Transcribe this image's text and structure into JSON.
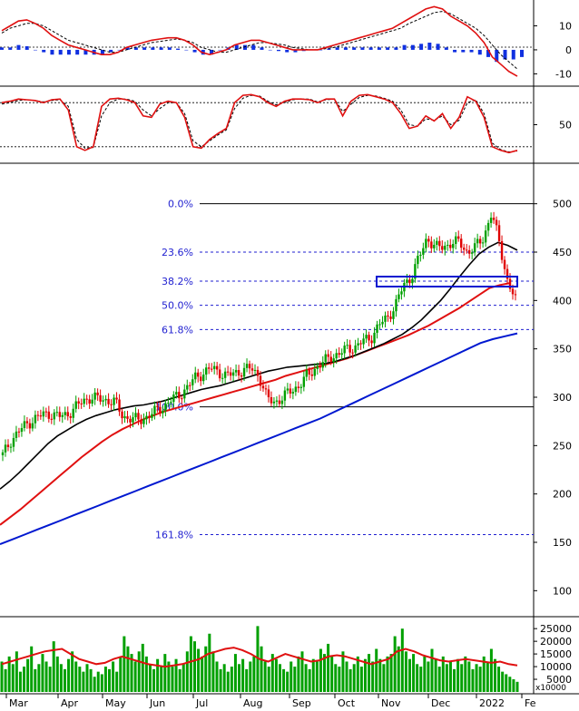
{
  "colors": {
    "up_candle": "#00a000",
    "down_candle": "#e00000",
    "ma_black": "#000000",
    "ma_red": "#e01010",
    "ma_blue": "#0018d0",
    "fib_text": "#1f1fd0",
    "volume": "#00a000",
    "macd_hist": "#1030e0"
  },
  "chart_data": [
    {
      "type": "line",
      "panel": "macd",
      "yticks": [
        10,
        0,
        -10
      ],
      "ylim": [
        -14,
        20
      ],
      "series": [
        {
          "role": "macd",
          "values": [
            8,
            10,
            12,
            12.5,
            11,
            9,
            6,
            4,
            2,
            1,
            0,
            -1,
            -2,
            -2,
            -1,
            1,
            2,
            3,
            4,
            4.5,
            5,
            5,
            4,
            2,
            -1,
            -2,
            -1,
            0,
            2,
            3,
            4,
            4,
            3,
            2,
            1,
            0,
            0,
            0,
            0,
            1,
            2,
            3,
            4,
            5,
            6,
            7,
            8,
            9,
            11,
            13,
            15,
            17,
            18,
            17,
            14,
            12,
            10,
            7,
            3,
            -3,
            -6,
            -9,
            -11
          ]
        },
        {
          "role": "signal",
          "values": [
            7,
            9,
            10,
            11,
            11,
            10,
            8,
            6,
            4,
            3,
            2,
            1,
            0,
            -1,
            -1,
            0,
            1,
            2,
            3,
            3.5,
            4,
            4.5,
            4,
            3,
            1,
            0,
            -1,
            -1,
            0,
            1,
            2,
            3,
            3,
            2.5,
            2,
            1,
            0.5,
            0,
            0,
            0.5,
            1,
            2,
            3,
            4,
            5,
            6,
            7,
            8,
            9,
            11,
            12.5,
            14,
            15.5,
            16,
            15,
            13,
            11,
            9,
            6,
            2,
            -2,
            -5,
            -8
          ]
        }
      ],
      "histogram": [
        1,
        1,
        2,
        1.5,
        0,
        -1,
        -2,
        -2,
        -2,
        -2,
        -2,
        -2,
        -2,
        -1,
        0,
        1,
        1,
        1,
        1,
        1,
        1,
        0.5,
        0,
        -1,
        -2,
        -2,
        0,
        1,
        2,
        2,
        2,
        1,
        0,
        -0.5,
        -1,
        -1,
        -0.5,
        0,
        0,
        0.5,
        1,
        1,
        1,
        1,
        1,
        1,
        1,
        1,
        2,
        2,
        2.5,
        3,
        2.5,
        1,
        -1,
        -1,
        -1,
        -2,
        -3,
        -5,
        -4,
        -4,
        -3
      ]
    },
    {
      "type": "line",
      "panel": "stochastic",
      "yticks": [
        50
      ],
      "ylim": [
        0,
        100
      ],
      "reference_lines": [
        80,
        20
      ],
      "series": [
        {
          "role": "k",
          "values": [
            80,
            82,
            85,
            84,
            83,
            80,
            84,
            85,
            70,
            20,
            15,
            20,
            75,
            85,
            86,
            84,
            80,
            62,
            60,
            78,
            82,
            80,
            60,
            20,
            18,
            30,
            38,
            45,
            80,
            90,
            91,
            88,
            80,
            75,
            82,
            85,
            85,
            84,
            80,
            85,
            85,
            62,
            82,
            90,
            91,
            88,
            85,
            80,
            65,
            45,
            48,
            62,
            55,
            65,
            45,
            60,
            88,
            82,
            60,
            20,
            15,
            12,
            15
          ]
        },
        {
          "role": "d",
          "values": [
            78,
            80,
            83,
            84,
            83,
            81,
            83,
            84,
            75,
            30,
            18,
            19,
            62,
            80,
            85,
            85,
            82,
            70,
            62,
            72,
            80,
            80,
            65,
            28,
            20,
            28,
            36,
            43,
            72,
            86,
            90,
            89,
            82,
            77,
            80,
            84,
            85,
            85,
            81,
            84,
            85,
            68,
            78,
            87,
            90,
            89,
            86,
            82,
            70,
            50,
            48,
            58,
            56,
            62,
            50,
            56,
            80,
            84,
            65,
            25,
            16,
            13,
            14
          ]
        }
      ]
    },
    {
      "type": "candlestick",
      "panel": "price",
      "yticks": [
        500,
        450,
        400,
        350,
        300,
        250,
        200,
        150,
        100
      ],
      "ylim": [
        75,
        540
      ],
      "fibonacci_levels": [
        {
          "label": "0.0%",
          "value": 500
        },
        {
          "label": "23.6%",
          "value": 450
        },
        {
          "label": "38.2%",
          "value": 420
        },
        {
          "label": "50.0%",
          "value": 395
        },
        {
          "label": "61.8%",
          "value": 370
        },
        {
          "label": "100.0%",
          "value": 290
        },
        {
          "label": "161.8%",
          "value": 158
        }
      ],
      "close": [
        240,
        255,
        265,
        272,
        278,
        282,
        283,
        280,
        282,
        289,
        296,
        300,
        298,
        297,
        295,
        280,
        278,
        276,
        280,
        285,
        290,
        297,
        302,
        310,
        320,
        325,
        330,
        326,
        322,
        325,
        328,
        330,
        322,
        298,
        295,
        300,
        307,
        312,
        322,
        330,
        336,
        342,
        345,
        350,
        352,
        358,
        362,
        375,
        382,
        395,
        415,
        425,
        445,
        465,
        455,
        455,
        460,
        460,
        450,
        455,
        465,
        490,
        460,
        420,
        400
      ],
      "ma_black": [
        205,
        213,
        222,
        232,
        242,
        252,
        260,
        266,
        272,
        277,
        281,
        284,
        287,
        289,
        291,
        292,
        294,
        296,
        299,
        302,
        305,
        308,
        310,
        312,
        315,
        318,
        321,
        324,
        327,
        329,
        331,
        332,
        333,
        334,
        335,
        337,
        340,
        343,
        347,
        351,
        355,
        360,
        365,
        372,
        380,
        390,
        400,
        412,
        425,
        437,
        448,
        455,
        460,
        457,
        452
      ],
      "ma_red": [
        168,
        176,
        184,
        193,
        202,
        211,
        220,
        229,
        238,
        246,
        254,
        261,
        267,
        272,
        277,
        281,
        285,
        288,
        291,
        294,
        297,
        300,
        303,
        306,
        309,
        312,
        315,
        318,
        322,
        325,
        328,
        331,
        334,
        337,
        340,
        344,
        348,
        352,
        356,
        360,
        364,
        369,
        374,
        380,
        386,
        392,
        399,
        406,
        413,
        416,
        418
      ],
      "ma_blue": [
        148,
        153,
        158,
        163,
        168,
        173,
        178,
        183,
        188,
        193,
        198,
        203,
        208,
        213,
        218,
        223,
        228,
        233,
        238,
        243,
        248,
        253,
        258,
        263,
        268,
        273,
        278,
        284,
        290,
        296,
        302,
        308,
        314,
        320,
        326,
        332,
        338,
        344,
        350,
        356,
        360,
        363,
        366
      ]
    },
    {
      "type": "bar",
      "panel": "volume",
      "yticks": [
        25000,
        20000,
        15000,
        10000,
        5000
      ],
      "yunit": "x10000",
      "ylim": [
        0,
        29000
      ],
      "values": [
        12000,
        9000,
        14000,
        11000,
        16000,
        8000,
        10000,
        13000,
        18000,
        9000,
        11000,
        15000,
        12000,
        10000,
        20000,
        14000,
        11000,
        9000,
        13000,
        16000,
        12000,
        10000,
        8000,
        11000,
        9000,
        6000,
        8000,
        7000,
        10000,
        9000,
        12000,
        8000,
        14000,
        22000,
        18000,
        15000,
        12000,
        16000,
        19000,
        14000,
        11000,
        9000,
        13000,
        10000,
        15000,
        12000,
        10000,
        13000,
        9000,
        11000,
        16000,
        22000,
        20000,
        17000,
        14000,
        18000,
        23000,
        16000,
        12000,
        9000,
        11000,
        8000,
        10000,
        15000,
        11000,
        13000,
        9000,
        12000,
        14000,
        26000,
        18000,
        12000,
        10000,
        15000,
        13000,
        11000,
        9000,
        8000,
        12000,
        10000,
        14000,
        16000,
        11000,
        9000,
        13000,
        12000,
        17000,
        15000,
        19000,
        14000,
        11000,
        10000,
        16000,
        12000,
        9000,
        11000,
        14000,
        10000,
        13000,
        15000,
        12000,
        17000,
        13000,
        11000,
        14000,
        15000,
        22000,
        18000,
        25000,
        16000,
        13000,
        15000,
        11000,
        10000,
        14000,
        12000,
        17000,
        13000,
        10000,
        14000,
        11000,
        12000,
        9000,
        13000,
        11000,
        14000,
        12000,
        9000,
        11000,
        10000,
        14000,
        12000,
        17000,
        13000,
        10000,
        8000,
        7000,
        6000,
        5000,
        4000
      ],
      "ma_values": [
        11000,
        12000,
        13000,
        14000,
        15000,
        16000,
        16500,
        17000,
        15000,
        13000,
        12000,
        11000,
        11500,
        13000,
        14000,
        13000,
        12000,
        11000,
        10500,
        10000,
        10500,
        11000,
        12000,
        13000,
        15000,
        16000,
        17000,
        17500,
        16500,
        15000,
        13000,
        12000,
        13500,
        15000,
        14000,
        13000,
        12000,
        12500,
        14000,
        14500,
        14000,
        13000,
        12000,
        11000,
        12000,
        13000,
        16000,
        17000,
        16000,
        14500,
        13500,
        12500,
        12000,
        12500,
        13000,
        12500,
        12000,
        11500,
        12000,
        11000,
        10500
      ]
    }
  ],
  "x_axis": {
    "months": [
      "Mar",
      "Apr",
      "May",
      "Jun",
      "Jul",
      "Aug",
      "Sep",
      "Oct",
      "Nov",
      "Dec",
      "2022",
      "Fe"
    ]
  }
}
